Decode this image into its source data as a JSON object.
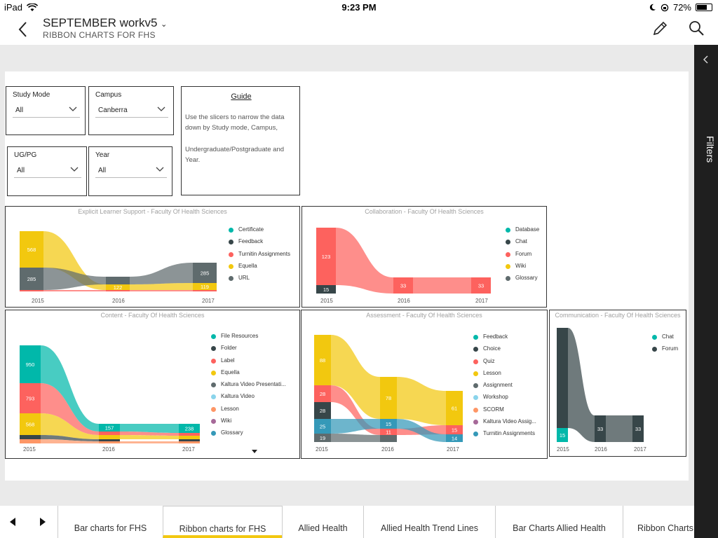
{
  "status": {
    "device": "iPad",
    "time": "9:23 PM",
    "battery_pct": "72%",
    "battery_level": 0.72
  },
  "header": {
    "title": "SEPTEMBER workv5",
    "subtitle": "RIBBON CHARTS FOR FHS"
  },
  "filters_label": "Filters",
  "slicers": {
    "study_mode": {
      "title": "Study Mode",
      "value": "All"
    },
    "campus": {
      "title": "Campus",
      "value": "Canberra"
    },
    "ug_pg": {
      "title": "UG/PG",
      "value": "All"
    },
    "year": {
      "title": "Year",
      "value": "All"
    }
  },
  "guide": {
    "title": "Guide",
    "text1": "Use the slicers to narrow the data down by Study mode, Campus,",
    "text2": "Undergraduate/Postgraduate and Year."
  },
  "colors": {
    "teal": "#01b8aa",
    "dark": "#374649",
    "coral": "#fd625e",
    "yellow": "#f2c80f",
    "gray": "#5f6b6d",
    "lightblue": "#8ad4eb",
    "orange": "#fe9666",
    "purple": "#a66999",
    "blue": "#3599b8",
    "accent": "#f2c811"
  },
  "chart_data": [
    {
      "type": "ribbon",
      "title": "Explicit Learner Support - Faculty Of Health Sciences",
      "categories": [
        "2015",
        "2016",
        "2017"
      ],
      "legend": [
        {
          "name": "Certificate",
          "color": "#01b8aa"
        },
        {
          "name": "Feedback",
          "color": "#374649"
        },
        {
          "name": "Turnitin Assignments",
          "color": "#fd625e"
        },
        {
          "name": "Equella",
          "color": "#f2c80f"
        },
        {
          "name": "URL",
          "color": "#5f6b6d"
        }
      ],
      "data_labels": [
        {
          "series": "Equella",
          "year": "2015",
          "value": 568
        },
        {
          "series": "URL",
          "year": "2015",
          "value": 285
        },
        {
          "series": "Equella",
          "year": "2016",
          "value": 122
        },
        {
          "series": "URL",
          "year": "2017",
          "value": 285
        },
        {
          "series": "Equella",
          "year": "2017",
          "value": 119
        }
      ]
    },
    {
      "type": "ribbon",
      "title": "Collaboration - Faculty Of Health Sciences",
      "categories": [
        "2015",
        "2016",
        "2017"
      ],
      "legend": [
        {
          "name": "Database",
          "color": "#01b8aa"
        },
        {
          "name": "Chat",
          "color": "#374649"
        },
        {
          "name": "Forum",
          "color": "#fd625e"
        },
        {
          "name": "Wiki",
          "color": "#f2c80f"
        },
        {
          "name": "Glossary",
          "color": "#5f6b6d"
        }
      ],
      "data_labels": [
        {
          "series": "Forum",
          "year": "2015",
          "value": 123
        },
        {
          "series": "Chat",
          "year": "2015",
          "value": 15
        },
        {
          "series": "Forum",
          "year": "2016",
          "value": 33
        },
        {
          "series": "Forum",
          "year": "2017",
          "value": 33
        }
      ]
    },
    {
      "type": "ribbon",
      "title": "Content - Faculty Of Health Sciences",
      "categories": [
        "2015",
        "2016",
        "2017"
      ],
      "legend": [
        {
          "name": "File Resources",
          "color": "#01b8aa"
        },
        {
          "name": "Folder",
          "color": "#374649"
        },
        {
          "name": "Label",
          "color": "#fd625e"
        },
        {
          "name": "Equella",
          "color": "#f2c80f"
        },
        {
          "name": "Kaltura Video Presentati...",
          "color": "#5f6b6d"
        },
        {
          "name": "Kaltura Video",
          "color": "#8ad4eb"
        },
        {
          "name": "Lesson",
          "color": "#fe9666"
        },
        {
          "name": "Wiki",
          "color": "#a66999"
        },
        {
          "name": "Glossary",
          "color": "#3599b8"
        }
      ],
      "data_labels": [
        {
          "series": "File Resources",
          "year": "2015",
          "value": 950
        },
        {
          "series": "Label",
          "year": "2015",
          "value": 793
        },
        {
          "series": "Equella",
          "year": "2015",
          "value": 568
        },
        {
          "series": "File Resources",
          "year": "2016",
          "value": 157
        },
        {
          "series": "File Resources",
          "year": "2017",
          "value": 238
        }
      ]
    },
    {
      "type": "ribbon",
      "title": "Assessment - Faculty Of Health Sciences",
      "categories": [
        "2015",
        "2016",
        "2017"
      ],
      "legend": [
        {
          "name": "Feedback",
          "color": "#01b8aa"
        },
        {
          "name": "Choice",
          "color": "#374649"
        },
        {
          "name": "Quiz",
          "color": "#fd625e"
        },
        {
          "name": "Lesson",
          "color": "#f2c80f"
        },
        {
          "name": "Assignment",
          "color": "#5f6b6d"
        },
        {
          "name": "Workshop",
          "color": "#8ad4eb"
        },
        {
          "name": "SCORM",
          "color": "#fe9666"
        },
        {
          "name": "Kaltura Video Assig...",
          "color": "#a66999"
        },
        {
          "name": "Turnitin Assignments",
          "color": "#3599b8"
        }
      ],
      "data_labels": [
        {
          "series": "Lesson",
          "year": "2015",
          "value": 88
        },
        {
          "series": "Quiz",
          "year": "2015",
          "value": 28
        },
        {
          "series": "Choice",
          "year": "2015",
          "value": 28
        },
        {
          "series": "Turnitin Assignments",
          "year": "2015",
          "value": 25
        },
        {
          "series": "Assignment",
          "year": "2015",
          "value": 19
        },
        {
          "series": "Lesson",
          "year": "2016",
          "value": 78
        },
        {
          "series": "Turnitin Assignments",
          "year": "2016",
          "value": 15
        },
        {
          "series": "Quiz",
          "year": "2016",
          "value": 11
        },
        {
          "series": "Lesson",
          "year": "2017",
          "value": 61
        },
        {
          "series": "Quiz",
          "year": "2017",
          "value": 15
        },
        {
          "series": "Turnitin Assignments",
          "year": "2017",
          "value": 14
        }
      ]
    },
    {
      "type": "ribbon",
      "title": "Communication - Faculty Of Health Sciences",
      "categories": [
        "2015",
        "2016",
        "2017"
      ],
      "legend": [
        {
          "name": "Chat",
          "color": "#01b8aa"
        },
        {
          "name": "Forum",
          "color": "#374649"
        }
      ],
      "data_labels": [
        {
          "series": "Chat",
          "year": "2015",
          "value": 15
        },
        {
          "series": "Forum",
          "year": "2016",
          "value": 33
        },
        {
          "series": "Forum",
          "year": "2017",
          "value": 33
        }
      ]
    }
  ],
  "tabs": {
    "bar_fhs": "Bar charts for FHS",
    "ribbon_fhs": "Ribbon charts for FHS",
    "allied": "Allied Health",
    "allied_trend": "Allied Health Trend Lines",
    "bar_allied": "Bar Charts Allied Health",
    "ribbon_more": "Ribbon Charts"
  }
}
